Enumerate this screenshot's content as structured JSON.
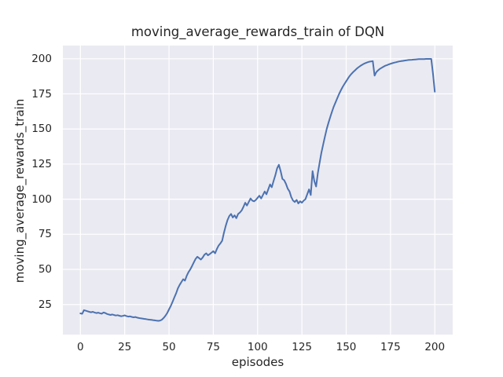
{
  "chart_data": {
    "type": "line",
    "title": "moving_average_rewards_train of DQN",
    "xlabel": "episodes",
    "ylabel": "moving_average_rewards_train",
    "xticks": [
      0,
      25,
      50,
      75,
      100,
      125,
      150,
      175,
      200
    ],
    "yticks": [
      25,
      50,
      75,
      100,
      125,
      150,
      175,
      200
    ],
    "xlim": [
      -9.9,
      210.1
    ],
    "ylim": [
      3.6,
      209.4
    ],
    "grid": true,
    "legend": false,
    "colors": {
      "line": "#4c72b0",
      "plot_background": "#eaeaf2",
      "grid": "#ffffff",
      "text": "#262626",
      "figure_background": "#ffffff"
    },
    "series": [
      {
        "name": "moving_average_rewards_train",
        "x_start": 0,
        "x_step": 1,
        "values": [
          18.7,
          18.4,
          21.0,
          20.6,
          20.2,
          19.8,
          19.5,
          19.8,
          19.3,
          18.9,
          19.2,
          18.8,
          18.5,
          19.3,
          19.0,
          18.3,
          17.9,
          17.6,
          17.9,
          17.5,
          17.2,
          17.4,
          17.0,
          16.7,
          16.9,
          17.3,
          16.8,
          16.4,
          16.6,
          16.2,
          15.9,
          16.1,
          15.7,
          15.4,
          15.2,
          15.0,
          14.8,
          14.6,
          14.4,
          14.2,
          14.1,
          13.9,
          13.7,
          13.5,
          13.4,
          13.6,
          14.2,
          15.5,
          17.0,
          19.0,
          21.5,
          24.0,
          27.0,
          30.0,
          33.0,
          36.5,
          39.0,
          41.0,
          43.0,
          42.0,
          45.5,
          48.0,
          50.0,
          52.5,
          55.0,
          57.5,
          59.0,
          58.0,
          57.0,
          58.5,
          60.5,
          61.5,
          60.0,
          61.0,
          62.0,
          63.0,
          61.5,
          64.5,
          67.0,
          68.5,
          70.5,
          76.0,
          81.0,
          85.0,
          88.0,
          89.5,
          87.0,
          88.5,
          86.5,
          89.5,
          90.5,
          92.0,
          94.5,
          97.5,
          95.5,
          98.0,
          100.5,
          99.0,
          98.5,
          99.5,
          101.0,
          102.5,
          100.5,
          103.0,
          105.5,
          103.5,
          107.0,
          110.5,
          108.5,
          113.0,
          117.0,
          122.0,
          124.5,
          120.0,
          114.5,
          113.5,
          111.0,
          107.5,
          105.5,
          101.5,
          99.0,
          98.0,
          99.5,
          97.0,
          98.5,
          97.5,
          99.0,
          100.0,
          103.5,
          107.0,
          103.0,
          120.0,
          113.0,
          109.0,
          118.5,
          126.0,
          133.0,
          139.0,
          144.5,
          150.0,
          154.5,
          158.5,
          162.5,
          166.0,
          169.0,
          172.0,
          175.0,
          177.5,
          180.0,
          182.0,
          184.0,
          186.0,
          187.8,
          189.3,
          190.6,
          191.8,
          193.0,
          194.0,
          194.9,
          195.7,
          196.4,
          197.0,
          197.5,
          197.9,
          198.1,
          198.3,
          188.0,
          190.5,
          191.8,
          192.8,
          193.6,
          194.3,
          195.0,
          195.5,
          196.0,
          196.4,
          196.8,
          197.2,
          197.5,
          197.8,
          198.1,
          198.3,
          198.5,
          198.7,
          198.9,
          199.1,
          199.2,
          199.3,
          199.4,
          199.5,
          199.6,
          199.7,
          199.7,
          199.8,
          199.8,
          199.9,
          199.9,
          199.9,
          199.9,
          189.0,
          176.5
        ]
      }
    ]
  }
}
